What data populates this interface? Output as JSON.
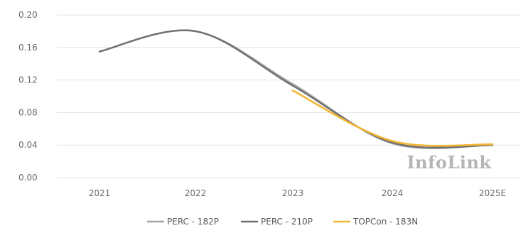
{
  "chart_data": {
    "type": "line",
    "title": "",
    "xlabel": "",
    "ylabel": "",
    "categories": [
      "2021",
      "2022",
      "2023",
      "2024",
      "2025E"
    ],
    "ylim": [
      0,
      0.2
    ],
    "y_ticks": [
      "0.20",
      "0.16",
      "0.12",
      "0.08",
      "0.04",
      "0.00"
    ],
    "y_tick_values": [
      0.2,
      0.16,
      0.12,
      0.08,
      0.04,
      0.0
    ],
    "grid": "horizontal",
    "legend_position": "bottom",
    "smooth": true,
    "series": [
      {
        "name": "PERC - 182P",
        "color": "#a6a6a6",
        "values": [
          0.155,
          0.18,
          0.115,
          0.042,
          0.04
        ]
      },
      {
        "name": "PERC - 210P",
        "color": "#707070",
        "values": [
          0.155,
          0.18,
          0.113,
          0.043,
          0.04
        ]
      },
      {
        "name": "TOPCon - 183N",
        "color": "#f2b632",
        "values": [
          null,
          null,
          0.107,
          0.045,
          0.041
        ]
      }
    ],
    "watermark": "InfoLink"
  }
}
